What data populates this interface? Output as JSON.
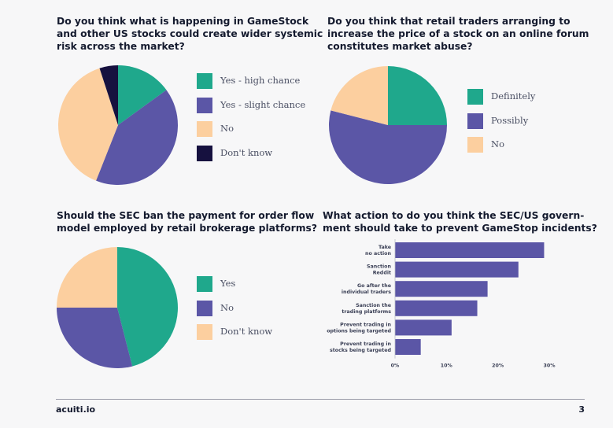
{
  "colors": {
    "teal": "#1fa88c",
    "purple": "#5b56a6",
    "peach": "#fccf9f",
    "navy": "#16113f",
    "bar": "#5b56a6",
    "text": "#141a2e"
  },
  "chart_data": [
    {
      "type": "pie",
      "title_lines": [
        "Do you think what is happening in GameStock",
        "and other US stocks could create wider systemic",
        "risk across the market?"
      ],
      "categories": [
        "Yes - high chance",
        "Yes - slight chance",
        "No",
        "Don't know"
      ],
      "values": [
        15,
        41,
        39,
        5
      ],
      "colors": [
        "#1fa88c",
        "#5b56a6",
        "#fccf9f",
        "#16113f"
      ],
      "start_angle_deg": 0,
      "legend": "right"
    },
    {
      "type": "pie",
      "title_lines": [
        "Do you think that retail traders arranging to",
        "increase the price of a stock on an online forum",
        "constitutes market abuse?"
      ],
      "categories": [
        "Definitely",
        "Possibly",
        "No"
      ],
      "values": [
        25,
        54,
        21
      ],
      "colors": [
        "#1fa88c",
        "#5b56a6",
        "#fccf9f"
      ],
      "start_angle_deg": 0,
      "legend": "right"
    },
    {
      "type": "pie",
      "title_lines": [
        "Should the SEC ban the payment for order flow",
        "model employed by retail brokerage platforms?"
      ],
      "categories": [
        "Yes",
        "No",
        "Don't know"
      ],
      "values": [
        46,
        29,
        25
      ],
      "colors": [
        "#1fa88c",
        "#5b56a6",
        "#fccf9f"
      ],
      "start_angle_deg": 0,
      "legend": "right"
    },
    {
      "type": "bar",
      "orientation": "horizontal",
      "title_lines": [
        "What action to do you think the SEC/US govern-",
        "ment should take to prevent GameStop incidents?"
      ],
      "categories": [
        [
          "Take",
          "no action"
        ],
        [
          "Sanction",
          "Reddit"
        ],
        [
          "Go after the",
          "individual traders"
        ],
        [
          "Sanction the",
          "trading platforms"
        ],
        [
          "Prevent trading in",
          "options being targeted"
        ],
        [
          "Prevent trading in",
          "stocks being targeted"
        ]
      ],
      "values": [
        29,
        24,
        18,
        16,
        11,
        5
      ],
      "xlim": [
        0,
        30
      ],
      "xticks": [
        "0%",
        "10%",
        "20%",
        "30%"
      ],
      "grid": false
    }
  ],
  "footer": {
    "brand": "acuiti.io",
    "page": "3"
  }
}
